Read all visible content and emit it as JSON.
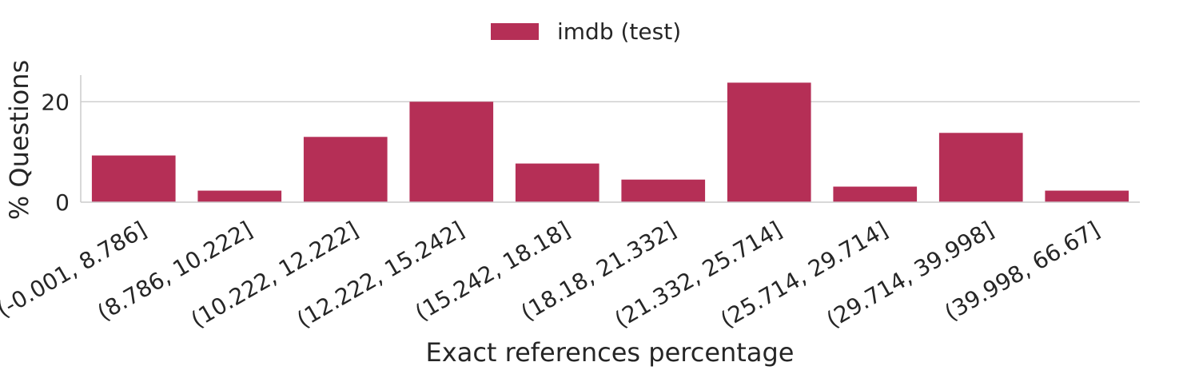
{
  "chart_data": {
    "type": "bar",
    "categories": [
      "(-0.001, 8.786]",
      "(8.786, 10.222]",
      "(10.222, 12.222]",
      "(12.222, 15.242]",
      "(15.242, 18.18]",
      "(18.18, 21.332]",
      "(21.332, 25.714]",
      "(25.714, 29.714]",
      "(29.714, 39.998]",
      "(39.998, 66.67]"
    ],
    "series": [
      {
        "name": "imdb (test)",
        "color": "#b52f56",
        "values": [
          9.3,
          2.3,
          13.0,
          20.0,
          7.7,
          4.5,
          23.8,
          3.1,
          13.8,
          2.3
        ]
      }
    ],
    "title": "",
    "xlabel": "Exact references percentage",
    "ylabel": "% Questions",
    "ylim": [
      0,
      25.3
    ],
    "yticks": [
      0,
      20
    ],
    "grid": "horizontal",
    "legend_position": "top-center"
  }
}
